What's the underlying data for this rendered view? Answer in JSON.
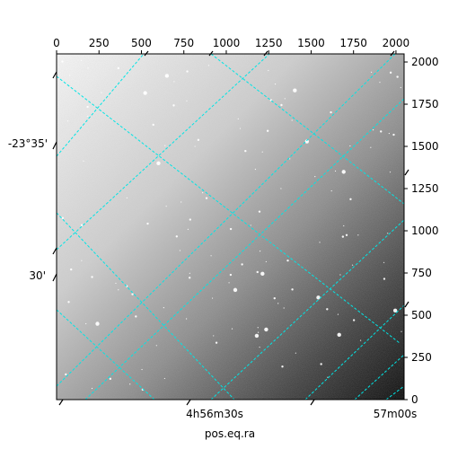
{
  "chart_data": {
    "type": "heatmap",
    "description_kind": "astronomical image with WCS overlay",
    "xlabel": "pos.eq.ra",
    "ylabel": "",
    "pixel_axes": {
      "xlim": [
        0,
        2048
      ],
      "ylim": [
        0,
        2048
      ],
      "top_ticks": [
        0,
        250,
        500,
        750,
        1000,
        1250,
        1500,
        1750,
        2000
      ],
      "top_tick_labels": [
        "0",
        "250",
        "500",
        "750",
        "1000",
        "1250",
        "1500",
        "1750",
        "2000"
      ],
      "right_ticks": [
        0,
        250,
        500,
        750,
        1000,
        1250,
        1500,
        1750,
        2000
      ],
      "right_tick_labels": [
        "0",
        "250",
        "500",
        "750",
        "1000",
        "1250",
        "1500",
        "1750",
        "2000"
      ]
    },
    "world_axes": {
      "ra_tick_labels": [
        "4h56m30s",
        "57m00s"
      ],
      "dec_tick_labels": [
        "-23°35'",
        "30'"
      ]
    },
    "grid": true,
    "grid_color": "#00e5e5",
    "colormap": "gray",
    "background_gradient": "bright top-left to dark bottom-right"
  }
}
